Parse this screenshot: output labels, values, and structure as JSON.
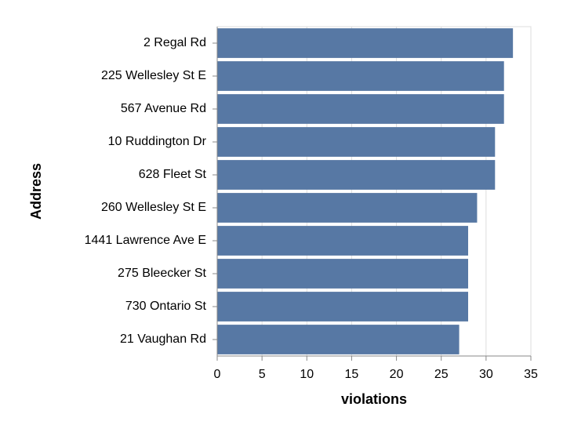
{
  "chart_data": {
    "type": "bar",
    "orientation": "horizontal",
    "x_label": "violations",
    "y_label": "Address",
    "categories": [
      "2 Regal Rd",
      "225 Wellesley St E",
      "567 Avenue Rd",
      "10 Ruddington Dr",
      "628 Fleet St",
      "260 Wellesley St E",
      "1441 Lawrence Ave E",
      "275 Bleecker St",
      "730 Ontario St",
      "21 Vaughan Rd"
    ],
    "values": [
      33,
      32,
      32,
      31,
      31,
      29,
      28,
      28,
      28,
      27
    ],
    "color": "#5778a4",
    "xlim": [
      0,
      35
    ],
    "xticks": [
      0,
      5,
      10,
      15,
      20,
      25,
      30,
      35
    ],
    "grid": true
  }
}
